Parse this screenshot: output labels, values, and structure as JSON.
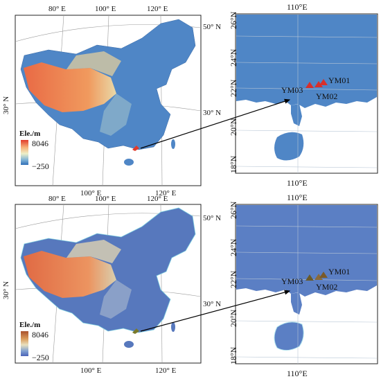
{
  "top_panel": {
    "china_map": {
      "lon_labels_top": [
        "80° E",
        "100° E",
        "120° E"
      ],
      "lon_labels_bottom": [
        "100° E",
        "120° E"
      ],
      "lat_labels_left": [
        "30° N"
      ],
      "lat_labels_right": [
        "50° N",
        "30° N"
      ]
    },
    "legend": {
      "title": "Ele./m",
      "max": "8046",
      "min": "−250",
      "colors": [
        "#2f6fb8",
        "#7fb3d6",
        "#eef0c8",
        "#f6b27a",
        "#e23b2b"
      ]
    },
    "zoom_map": {
      "lon_label_top": "110°E",
      "lon_label_bottom": "110°E",
      "lat_labels": [
        "26°N",
        "24°N",
        "22°N",
        "20°N",
        "18°N"
      ],
      "sites": [
        {
          "label": "YM01",
          "color": "#d9302a"
        },
        {
          "label": "YM02",
          "color": "#d9302a"
        },
        {
          "label": "YM03",
          "color": "#d9302a"
        }
      ]
    }
  },
  "bottom_panel": {
    "china_map": {
      "lon_labels_top": [
        "80° E",
        "100° E",
        "120° E"
      ],
      "lon_labels_bottom": [
        "100° E",
        "120° E"
      ],
      "lat_labels_left": [
        "30° N"
      ],
      "lat_labels_right": [
        "50° N",
        "30° N"
      ]
    },
    "legend": {
      "title": "Ele./m",
      "max": "8046",
      "min": "−250",
      "colors": [
        "#4a63b8",
        "#7f9fd0",
        "#e9e1bf",
        "#d99a5a",
        "#a9512c"
      ]
    },
    "zoom_map": {
      "lon_label_top": "110°E",
      "lon_label_bottom": "110°E",
      "lat_labels": [
        "26°N",
        "24°N",
        "22°N",
        "20°N",
        "18°N"
      ],
      "sites": [
        {
          "label": "YM01",
          "color": "#7a5a2a"
        },
        {
          "label": "YM02",
          "color": "#8a6a3a"
        },
        {
          "label": "YM03",
          "color": "#6a5a2a"
        }
      ]
    }
  },
  "colors": {
    "lowland_blue": "#4f86c6",
    "highland_red": "#e4623f",
    "arrow": "#000000"
  }
}
